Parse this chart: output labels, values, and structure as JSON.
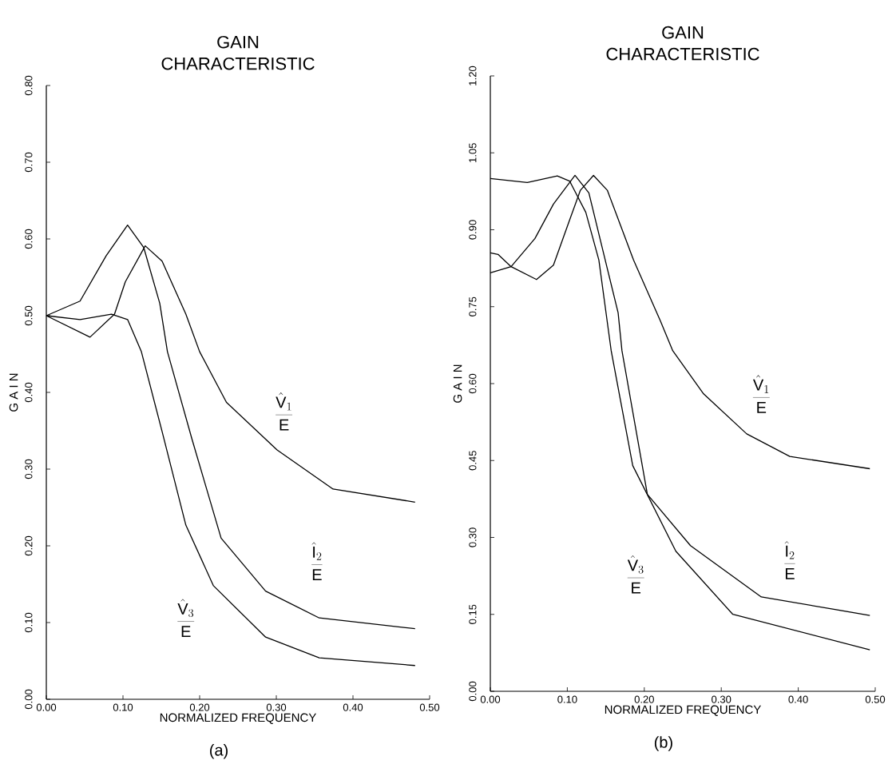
{
  "chart_data": [
    {
      "type": "line",
      "title": "GAIN CHARACTERISTIC",
      "xlabel": "NORMALIZED FREQUENCY",
      "ylabel": "G A I N",
      "xlim": [
        0,
        0.5
      ],
      "ylim": [
        0,
        0.8
      ],
      "xticks": [
        {
          "value": 0,
          "label": "0.00"
        },
        {
          "value": 0.1,
          "label": "0.10"
        },
        {
          "value": 0.2,
          "label": "0.20"
        },
        {
          "value": 0.3,
          "label": "0.30"
        },
        {
          "value": 0.4,
          "label": "0.40"
        },
        {
          "value": 0.5,
          "label": "0.50"
        }
      ],
      "yticks": [
        {
          "value": 0,
          "label": "0.00"
        },
        {
          "value": 0.1,
          "label": "0.10"
        },
        {
          "value": 0.2,
          "label": "0.20"
        },
        {
          "value": 0.3,
          "label": "0.30"
        },
        {
          "value": 0.4,
          "label": "0.40"
        },
        {
          "value": 0.5,
          "label": "0.50"
        },
        {
          "value": 0.6,
          "label": "0.60"
        },
        {
          "value": 0.7,
          "label": "0.70"
        },
        {
          "value": 0.8,
          "label": "0.80"
        }
      ],
      "grid": false,
      "series": [
        {
          "color": "#000000",
          "x": [
            0,
            0.057,
            0.089,
            0.103,
            0.129,
            0.151,
            0.182,
            0.2,
            0.235,
            0.301,
            0.374,
            0.481
          ],
          "values": [
            0.5,
            0.472,
            0.502,
            0.544,
            0.591,
            0.571,
            0.502,
            0.453,
            0.387,
            0.325,
            0.274,
            0.257
          ]
        },
        {
          "color": "#000000",
          "x": [
            0,
            0.044,
            0.078,
            0.106,
            0.127,
            0.148,
            0.158,
            0.19,
            0.228,
            0.286,
            0.356,
            0.481
          ],
          "values": [
            0.5,
            0.519,
            0.578,
            0.618,
            0.589,
            0.516,
            0.453,
            0.339,
            0.21,
            0.141,
            0.106,
            0.092
          ]
        },
        {
          "color": "#000000",
          "x": [
            0,
            0.044,
            0.085,
            0.106,
            0.124,
            0.151,
            0.182,
            0.218,
            0.286,
            0.356,
            0.481
          ],
          "values": [
            0.5,
            0.495,
            0.502,
            0.495,
            0.453,
            0.349,
            0.227,
            0.148,
            0.081,
            0.054,
            0.044
          ]
        }
      ],
      "annotations": [
        "\\frac{\\hat{\\mathrm{V}}_1}{\\mathrm{E}}",
        "\\frac{\\hat{\\mathrm{I}}_2}{\\mathrm{E}}",
        "\\frac{\\hat{\\mathrm{V}}_3}{\\mathrm{E}}",
        "(a)"
      ]
    },
    {
      "type": "line",
      "title": "GAIN CHARACTERISTIC",
      "xlabel": "NORMALIZED FREQUENCY",
      "ylabel": "G A I N",
      "xlim": [
        0,
        0.5
      ],
      "ylim": [
        0,
        1.2
      ],
      "xticks": [
        {
          "value": 0,
          "label": "0.00"
        },
        {
          "value": 0.1,
          "label": "0.10"
        },
        {
          "value": 0.2,
          "label": "0.20"
        },
        {
          "value": 0.3,
          "label": "0.30"
        },
        {
          "value": 0.4,
          "label": "0.40"
        },
        {
          "value": 0.5,
          "label": "0.50"
        }
      ],
      "yticks": [
        {
          "value": 0,
          "label": "0.00"
        },
        {
          "value": 0.15,
          "label": "0.15"
        },
        {
          "value": 0.3,
          "label": "0.30"
        },
        {
          "value": 0.45,
          "label": "0.45"
        },
        {
          "value": 0.6,
          "label": "0.60"
        },
        {
          "value": 0.75,
          "label": "0.75"
        },
        {
          "value": 0.9,
          "label": "0.90"
        },
        {
          "value": 1.05,
          "label": "1.05"
        },
        {
          "value": 1.2,
          "label": "1.20"
        }
      ],
      "grid": false,
      "series": [
        {
          "color": "#000000",
          "x": [
            0,
            0.01,
            0.027,
            0.06,
            0.082,
            0.103,
            0.117,
            0.134,
            0.152,
            0.186,
            0.221,
            0.237,
            0.277,
            0.333,
            0.389,
            0.493
          ],
          "values": [
            0.855,
            0.852,
            0.828,
            0.803,
            0.831,
            0.919,
            0.977,
            1.006,
            0.977,
            0.841,
            0.722,
            0.664,
            0.58,
            0.502,
            0.458,
            0.434
          ]
        },
        {
          "color": "#000000",
          "x": [
            0,
            0.027,
            0.058,
            0.082,
            0.11,
            0.128,
            0.145,
            0.166,
            0.171,
            0.204,
            0.26,
            0.352,
            0.493
          ],
          "values": [
            0.816,
            0.828,
            0.883,
            0.95,
            1.006,
            0.972,
            0.867,
            0.738,
            0.664,
            0.384,
            0.284,
            0.184,
            0.148
          ]
        },
        {
          "color": "#000000",
          "x": [
            0,
            0.048,
            0.087,
            0.103,
            0.124,
            0.141,
            0.157,
            0.185,
            0.241,
            0.315,
            0.493
          ],
          "values": [
            1.0,
            0.992,
            1.005,
            0.995,
            0.934,
            0.841,
            0.664,
            0.44,
            0.273,
            0.15,
            0.081
          ]
        }
      ],
      "annotations": [
        "\\frac{\\hat{\\mathrm{V}}_1}{\\mathrm{E}}",
        "\\frac{\\hat{\\mathrm{I}}_2}{\\mathrm{E}}",
        "\\frac{\\hat{\\mathrm{V}}_3}{\\mathrm{E}}",
        "(b)"
      ]
    }
  ]
}
